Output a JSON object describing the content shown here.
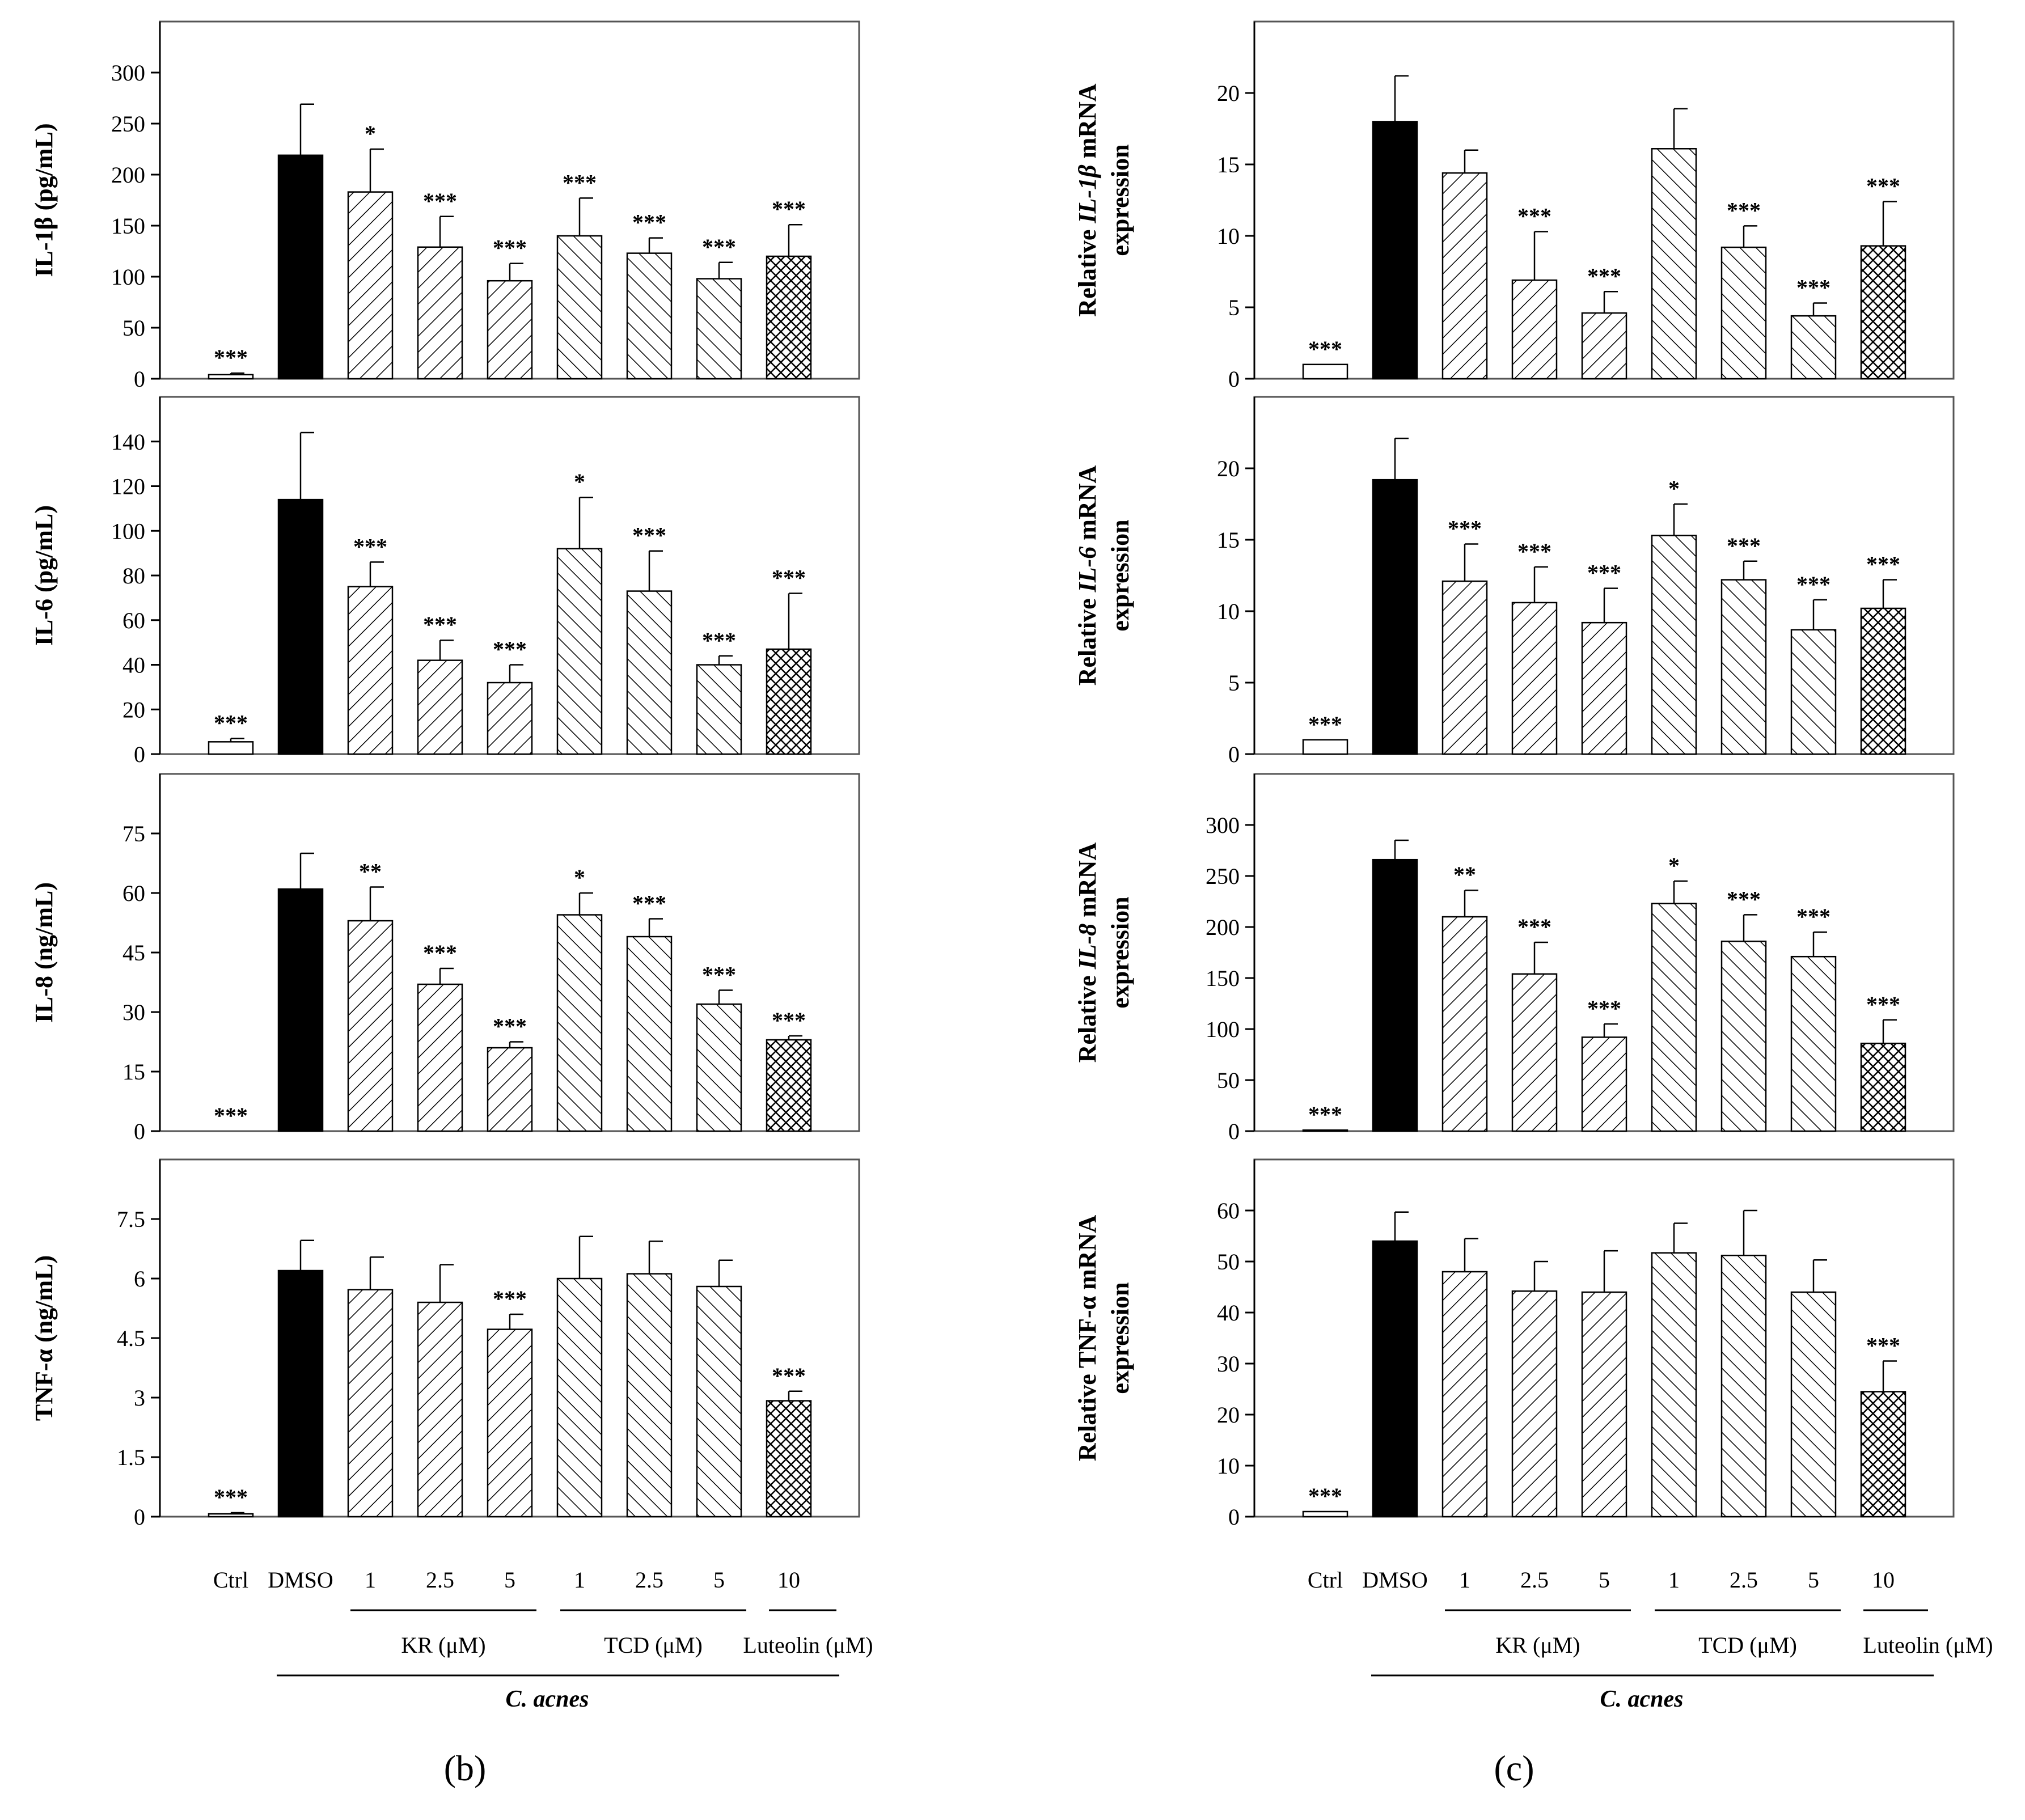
{
  "categories": [
    "Ctrl",
    "DMSO",
    "1",
    "2.5",
    "5",
    "1",
    "2.5",
    "5",
    "10"
  ],
  "groups": [
    "KR (μM)",
    "TCD (μM)",
    "Luteolin (μM)"
  ],
  "organism": "C. acnes",
  "colors": {
    "ink": "#000000",
    "background": "#ffffff",
    "frame": "#555555"
  },
  "panel_labels": [
    "(b)",
    "(c)"
  ],
  "chart_data": [
    {
      "type": "bar",
      "panel": "b",
      "title": "",
      "ylabel": "IL-1β (pg/mL)",
      "ylabel_italic": "",
      "categories": [
        "Ctrl",
        "DMSO",
        "1",
        "2.5",
        "5",
        "1",
        "2.5",
        "5",
        "10"
      ],
      "values": [
        4,
        219,
        183,
        129,
        96,
        140,
        123,
        98,
        120
      ],
      "errors": [
        1.5,
        50,
        42,
        30,
        17,
        37,
        15,
        16,
        31
      ],
      "significance": [
        "***",
        "",
        "*",
        "***",
        "***",
        "***",
        "***",
        "***",
        "***"
      ],
      "ylim": [
        0,
        350
      ],
      "yticks": [
        0,
        50,
        100,
        150,
        200,
        250,
        300
      ]
    },
    {
      "type": "bar",
      "panel": "b",
      "title": "",
      "ylabel": "IL-6 (pg/mL)",
      "ylabel_italic": "",
      "categories": [
        "Ctrl",
        "DMSO",
        "1",
        "2.5",
        "5",
        "1",
        "2.5",
        "5",
        "10"
      ],
      "values": [
        5.5,
        114,
        75,
        42,
        32,
        92,
        73,
        40,
        47
      ],
      "errors": [
        1.5,
        30,
        11,
        9,
        8,
        23,
        18,
        4,
        25
      ],
      "significance": [
        "***",
        "",
        "***",
        "***",
        "***",
        "*",
        "***",
        "***",
        "***"
      ],
      "ylim": [
        0,
        160
      ],
      "yticks": [
        0,
        20,
        40,
        60,
        80,
        100,
        120,
        140
      ]
    },
    {
      "type": "bar",
      "panel": "b",
      "title": "",
      "ylabel": "IL-8 (ng/mL)",
      "ylabel_italic": "",
      "categories": [
        "Ctrl",
        "DMSO",
        "1",
        "2.5",
        "5",
        "1",
        "2.5",
        "5",
        "10"
      ],
      "values": [
        0,
        61,
        53,
        37,
        21,
        54.5,
        49,
        32,
        23
      ],
      "errors": [
        0,
        9,
        8.5,
        4,
        1.5,
        5.5,
        4.5,
        3.5,
        1
      ],
      "significance": [
        "***",
        "",
        "**",
        "***",
        "***",
        "*",
        "***",
        "***",
        "***"
      ],
      "ylim": [
        0,
        90
      ],
      "yticks": [
        0,
        15,
        30,
        45,
        60,
        75
      ]
    },
    {
      "type": "bar",
      "panel": "b",
      "title": "",
      "ylabel": "TNF-α (ng/mL)",
      "ylabel_italic": "",
      "categories": [
        "Ctrl",
        "DMSO",
        "1",
        "2.5",
        "5",
        "1",
        "2.5",
        "5",
        "10"
      ],
      "values": [
        0.07,
        6.2,
        5.72,
        5.4,
        4.72,
        6.0,
        6.12,
        5.8,
        2.92
      ],
      "errors": [
        0.03,
        0.76,
        0.82,
        0.95,
        0.38,
        1.06,
        0.82,
        0.66,
        0.24
      ],
      "significance": [
        "***",
        "",
        "",
        "",
        "***",
        "",
        "",
        "",
        "***"
      ],
      "ylim": [
        0,
        9
      ],
      "yticks": [
        0,
        1.5,
        3,
        4.5,
        6,
        7.5
      ]
    },
    {
      "type": "bar",
      "panel": "c",
      "title": "",
      "ylabel": "Relative IL-1β mRNA expression",
      "ylabel_italic": "IL-1β",
      "categories": [
        "Ctrl",
        "DMSO",
        "1",
        "2.5",
        "5",
        "1",
        "2.5",
        "5",
        "10"
      ],
      "values": [
        1,
        18,
        14.4,
        6.9,
        4.6,
        16.1,
        9.2,
        4.4,
        9.3
      ],
      "errors": [
        0,
        3.2,
        1.6,
        3.4,
        1.5,
        2.8,
        1.5,
        0.9,
        3.1
      ],
      "significance": [
        "***",
        "",
        "",
        "***",
        "***",
        "",
        "***",
        "***",
        "***"
      ],
      "ylim": [
        0,
        25
      ],
      "yticks": [
        0,
        5,
        10,
        15,
        20
      ]
    },
    {
      "type": "bar",
      "panel": "c",
      "title": "",
      "ylabel": "Relative IL-6 mRNA expression",
      "ylabel_italic": "IL-6",
      "categories": [
        "Ctrl",
        "DMSO",
        "1",
        "2.5",
        "5",
        "1",
        "2.5",
        "5",
        "10"
      ],
      "values": [
        1,
        19.2,
        12.1,
        10.6,
        9.2,
        15.3,
        12.2,
        8.7,
        10.2
      ],
      "errors": [
        0,
        2.9,
        2.6,
        2.5,
        2.4,
        2.2,
        1.3,
        2.1,
        2.0
      ],
      "significance": [
        "***",
        "",
        "***",
        "***",
        "***",
        "*",
        "***",
        "***",
        "***"
      ],
      "ylim": [
        0,
        25
      ],
      "yticks": [
        0,
        5,
        10,
        15,
        20
      ]
    },
    {
      "type": "bar",
      "panel": "c",
      "title": "",
      "ylabel": "Relative IL-8 mRNA expression",
      "ylabel_italic": "IL-8",
      "categories": [
        "Ctrl",
        "DMSO",
        "1",
        "2.5",
        "5",
        "1",
        "2.5",
        "5",
        "10"
      ],
      "values": [
        1,
        266,
        210,
        154,
        92,
        223,
        186,
        171,
        86
      ],
      "errors": [
        0,
        19,
        26,
        31,
        13,
        22,
        26,
        24,
        23
      ],
      "significance": [
        "***",
        "",
        "**",
        "***",
        "***",
        "*",
        "***",
        "***",
        "***"
      ],
      "ylim": [
        0,
        350
      ],
      "yticks": [
        0,
        50,
        100,
        150,
        200,
        250,
        300
      ]
    },
    {
      "type": "bar",
      "panel": "c",
      "title": "",
      "ylabel": "Relative TNF-α mRNA expression",
      "ylabel_italic": "",
      "categories": [
        "Ctrl",
        "DMSO",
        "1",
        "2.5",
        "5",
        "1",
        "2.5",
        "5",
        "10"
      ],
      "values": [
        1,
        54,
        48,
        44.2,
        44,
        51.7,
        51.2,
        44,
        24.5
      ],
      "errors": [
        0,
        5.7,
        6.5,
        5.8,
        8.1,
        5.8,
        8.8,
        6.3,
        6
      ],
      "significance": [
        "***",
        "",
        "",
        "",
        "",
        "",
        "",
        "",
        "***"
      ],
      "ylim": [
        0,
        70
      ],
      "yticks": [
        0,
        10,
        20,
        30,
        40,
        50,
        60
      ]
    }
  ]
}
